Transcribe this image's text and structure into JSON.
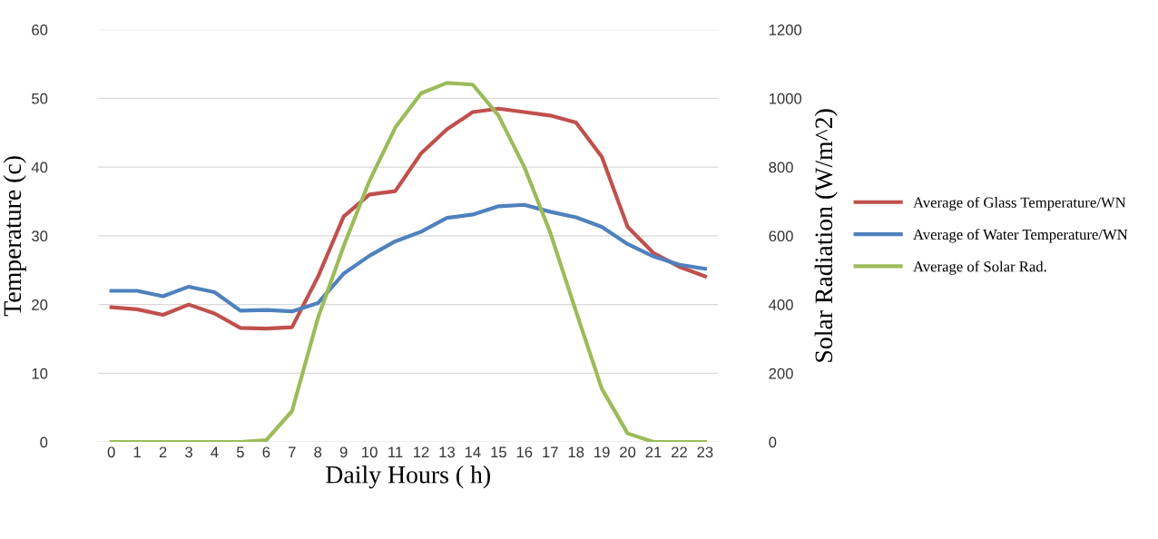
{
  "chart_data": {
    "type": "line",
    "xlabel": "Daily Hours ( h)",
    "ylabel": "Temperature (c)",
    "y2label": "Solar Radiation (W/m^2)",
    "categories": [
      "0",
      "1",
      "2",
      "3",
      "4",
      "5",
      "6",
      "7",
      "8",
      "9",
      "10",
      "11",
      "12",
      "13",
      "14",
      "15",
      "16",
      "17",
      "18",
      "19",
      "20",
      "21",
      "22",
      "23"
    ],
    "series": [
      {
        "name": "Average of Glass Temperature/WN",
        "color": "#c0504d",
        "values": [
          19.6,
          19.3,
          18.5,
          20.0,
          18.7,
          16.6,
          16.5,
          16.7,
          24,
          32.8,
          36,
          36.5,
          42,
          45.5,
          48,
          48.5,
          48,
          47.5,
          46.5,
          41.5,
          31.3,
          27.5,
          25.5,
          24.1
        ]
      },
      {
        "name": "Average of Water Temperature/WN",
        "color": "#4f81bd",
        "values": [
          22,
          22,
          21.2,
          22.6,
          21.8,
          19.1,
          19.2,
          19,
          20.2,
          24.5,
          27.1,
          29.2,
          30.6,
          32.6,
          33.1,
          34.3,
          34.5,
          33.5,
          32.7,
          31.3,
          28.8,
          27,
          25.8,
          25.2
        ]
      },
      {
        "name": "Average of Solar Rad.",
        "color": "#9bbb59",
        "axis": "y2",
        "values": [
          0,
          0,
          0,
          0,
          0,
          0,
          5,
          90,
          360,
          570,
          760,
          915,
          1015,
          1045,
          1040,
          950,
          800,
          610,
          380,
          155,
          25,
          0,
          0,
          0
        ]
      }
    ],
    "ylim": [
      0,
      60
    ],
    "yticks": [
      0,
      10,
      20,
      30,
      40,
      50,
      60
    ],
    "y2lim": [
      0,
      1200
    ],
    "y2ticks": [
      0,
      200,
      400,
      600,
      800,
      1000,
      1200
    ],
    "grid": "y",
    "legend": "right",
    "marker": "none",
    "line_style": "solid"
  }
}
